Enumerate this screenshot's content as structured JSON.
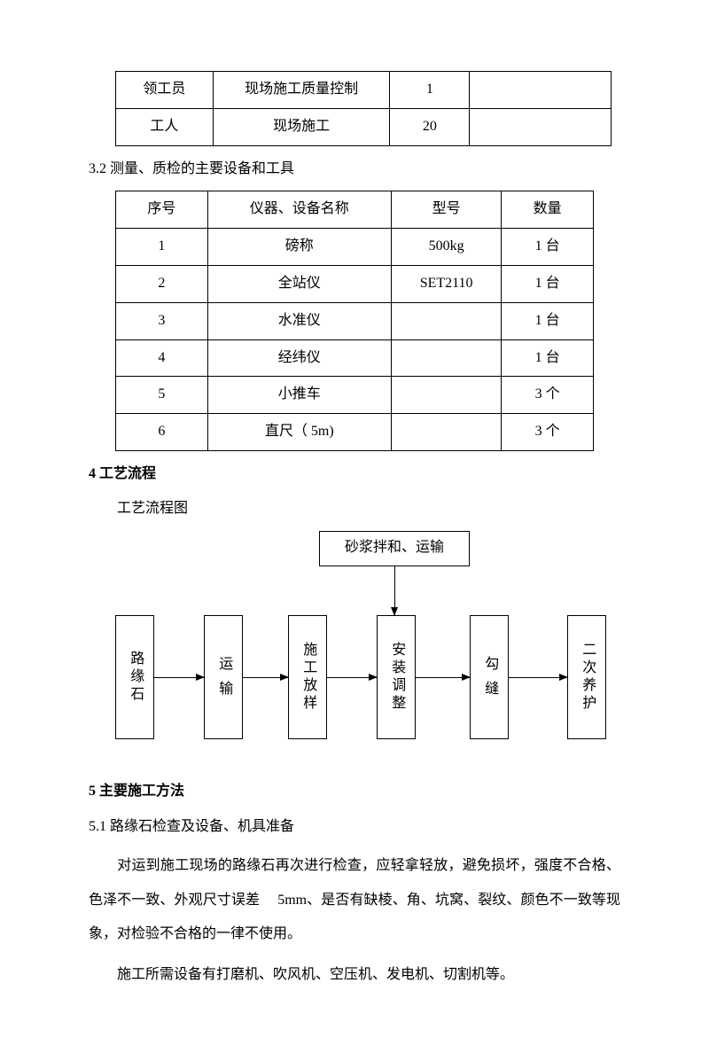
{
  "table1": {
    "rows": [
      [
        "领工员",
        "现场施工质量控制",
        "1",
        ""
      ],
      [
        "工人",
        "现场施工",
        "20",
        ""
      ]
    ]
  },
  "caption32": "3.2 测量、质检的主要设备和工具",
  "table2": {
    "headers": [
      "序号",
      "仪器、设备名称",
      "型号",
      "数量"
    ],
    "rows": [
      [
        "1",
        "磅称",
        "500kg",
        "1 台"
      ],
      [
        "2",
        "全站仪",
        "SET2110",
        "1 台"
      ],
      [
        "3",
        "水准仪",
        "",
        "1 台"
      ],
      [
        "4",
        "经纬仪",
        "",
        "1 台"
      ],
      [
        "5",
        "小推车",
        "",
        "3 个"
      ],
      [
        "6",
        "直尺（ 5m)",
        "",
        "3 个"
      ]
    ]
  },
  "heading4": "4 工艺流程",
  "subhead4": "工艺流程图",
  "flow": {
    "top": "砂浆拌和、运输",
    "nodes": [
      "路缘石",
      "运 输",
      "施工放样",
      "安装调整",
      "勾 缝",
      "二次养护"
    ]
  },
  "heading5": "5 主要施工方法",
  "caption51": "5.1 路缘石检查及设备、机具准备",
  "para1": "对运到施工现场的路缘石再次进行检查，应轻拿轻放，避免损坏，强度不合格、色泽不一致、外观尺寸误差　 5mm、是否有缺棱、角、坑窝、裂纹、颜色不一致等现象，对检验不合格的一律不使用。",
  "para2": "施工所需设备有打磨机、吹风机、空压机、发电机、切割机等。"
}
